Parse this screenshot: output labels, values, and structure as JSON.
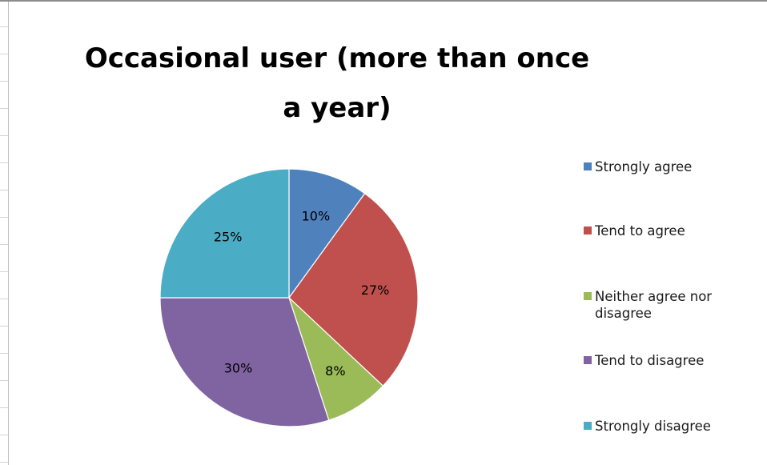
{
  "chart_data": {
    "type": "pie",
    "title": "Occasional user (more than once a year)",
    "categories": [
      "Strongly agree",
      "Tend to agree",
      "Neither agree nor disagree",
      "Tend to disagree",
      "Strongly disagree"
    ],
    "values": [
      10,
      27,
      8,
      30,
      25
    ],
    "data_labels": [
      "10%",
      "27%",
      "8%",
      "30%",
      "25%"
    ],
    "colors": [
      "#4f81bd",
      "#c0504d",
      "#9bbb59",
      "#8064a2",
      "#4bacc6"
    ],
    "start_angle": "12 o'clock, clockwise",
    "legend_position": "right"
  },
  "legend": {
    "items": [
      {
        "label_lines": [
          "Strongly agree"
        ],
        "color": "#4f81bd"
      },
      {
        "label_lines": [
          "Tend to agree"
        ],
        "color": "#c0504d"
      },
      {
        "label_lines": [
          "Neither agree nor",
          "disagree"
        ],
        "color": "#9bbb59"
      },
      {
        "label_lines": [
          "Tend to disagree"
        ],
        "color": "#8064a2"
      },
      {
        "label_lines": [
          "Strongly disagree"
        ],
        "color": "#4bacc6"
      }
    ]
  }
}
